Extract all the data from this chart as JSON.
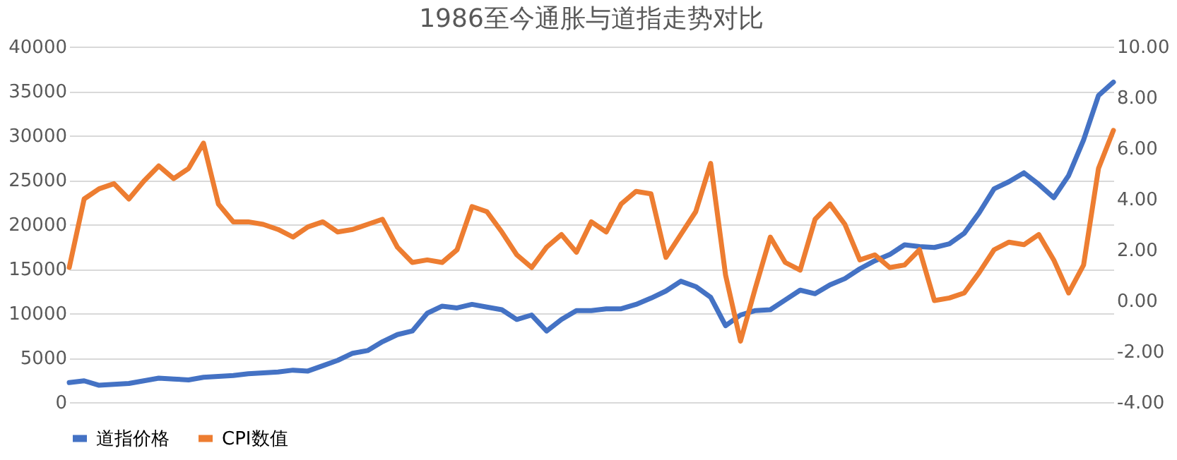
{
  "chart_data": {
    "type": "line",
    "title": "1986至今通胀与道指走势对比",
    "categories": [
      null,
      null,
      null,
      null,
      null,
      null,
      null,
      null,
      null,
      null,
      null,
      null,
      null,
      null,
      null,
      null,
      null,
      null,
      null,
      null,
      null,
      null,
      null,
      null,
      null,
      null,
      null,
      null,
      null,
      null,
      null,
      null,
      null,
      null,
      null,
      null,
      null,
      null,
      null,
      null,
      null,
      null,
      null,
      null,
      null,
      null,
      null,
      null,
      null,
      null,
      null,
      null,
      null,
      null,
      null,
      null,
      null,
      null,
      null,
      null,
      null,
      null,
      null,
      null,
      null,
      null,
      null,
      null,
      null,
      null,
      null
    ],
    "series": [
      {
        "name": "道指价格",
        "color": "#4472c4",
        "values": [
          2200,
          2400,
          1900,
          2000,
          2100,
          2400,
          2700,
          2600,
          2500,
          2800,
          2900,
          3000,
          3200,
          3300,
          3400,
          3600,
          3500,
          4100,
          4700,
          5500,
          5800,
          6800,
          7600,
          8000,
          10000,
          10800,
          10600,
          11000,
          10700,
          10400,
          9300,
          9800,
          8000,
          9300,
          10300,
          10300,
          10500,
          10500,
          11000,
          11700,
          12500,
          13600,
          13000,
          11800,
          8600,
          9800,
          10300,
          10400,
          11500,
          12600,
          12200,
          13200,
          13900,
          15000,
          15900,
          16600,
          17700,
          17500,
          17400,
          17800,
          19000,
          21300,
          24000,
          24800,
          25800,
          24500,
          23000,
          25500,
          29500,
          34500,
          36000
        ]
      },
      {
        "name": "CPI数值",
        "color": "#ed7d31",
        "axis": "y2",
        "values": [
          1.3,
          4.0,
          4.4,
          4.6,
          4.0,
          4.7,
          5.3,
          4.8,
          5.2,
          6.2,
          3.8,
          3.1,
          3.1,
          3.0,
          2.8,
          2.5,
          2.9,
          3.1,
          2.7,
          2.8,
          3.0,
          3.2,
          2.1,
          1.5,
          1.6,
          1.5,
          2.0,
          3.7,
          3.5,
          2.7,
          1.8,
          1.3,
          2.1,
          2.6,
          1.9,
          3.1,
          2.7,
          3.8,
          4.3,
          4.2,
          1.7,
          2.6,
          3.5,
          5.4,
          1.0,
          -1.6,
          0.5,
          2.5,
          1.5,
          1.2,
          3.2,
          3.8,
          3.0,
          1.6,
          1.8,
          1.3,
          1.4,
          2.0,
          0.0,
          0.1,
          0.3,
          1.1,
          2.0,
          2.3,
          2.2,
          2.6,
          1.6,
          0.3,
          1.4,
          5.2,
          6.7
        ]
      }
    ],
    "ylim": [
      0,
      40000
    ],
    "yticks": [
      0,
      5000,
      10000,
      15000,
      20000,
      25000,
      30000,
      35000,
      40000
    ],
    "y2lim": [
      -4,
      10
    ],
    "y2ticks": [
      {
        "value": -4,
        "label": "-4.00"
      },
      {
        "value": -2,
        "label": "-2.00"
      },
      {
        "value": 0,
        "label": "0.00"
      },
      {
        "value": 2,
        "label": "2.00"
      },
      {
        "value": 4,
        "label": "4.00"
      },
      {
        "value": 6,
        "label": "6.00"
      },
      {
        "value": 8,
        "label": "8.00"
      },
      {
        "value": 10,
        "label": "10.00"
      }
    ],
    "grid": "y",
    "legend": "bottom",
    "line_style": "solid",
    "marker": "none"
  }
}
